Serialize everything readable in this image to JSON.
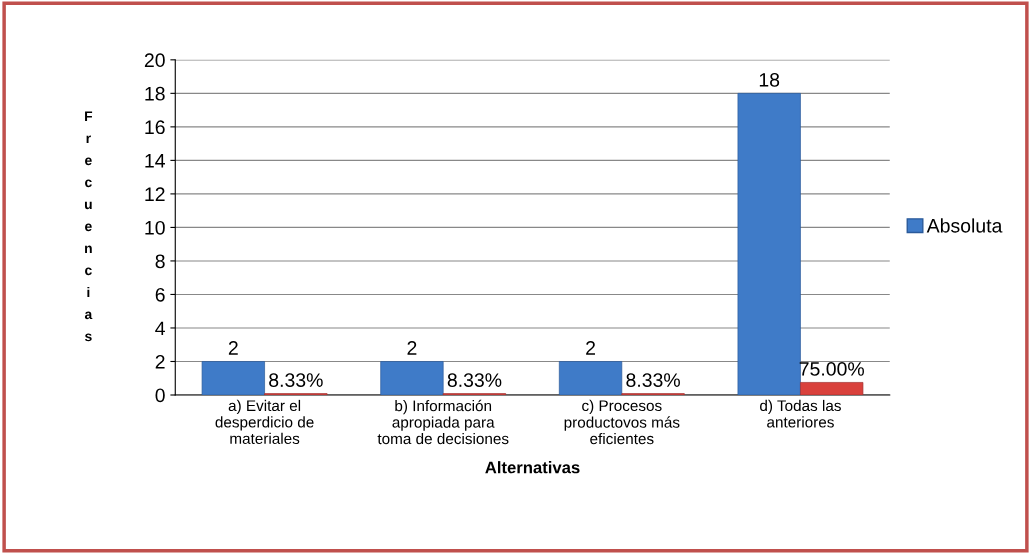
{
  "chart_data": {
    "type": "bar",
    "categories": [
      "a) Evitar el\ndesperdicio de\nmateriales",
      "b) Información\napropiada para\ntoma de decisiones",
      "c) Procesos\nproductovos más\neficientes",
      "d) Todas las\nanteriores"
    ],
    "series": [
      {
        "name": "Absoluta",
        "color": "#3f7bc8",
        "values": [
          2,
          2,
          2,
          18
        ],
        "value_labels": [
          "2",
          "2",
          "2",
          "18"
        ]
      },
      {
        "color": "#d9413c",
        "values": [
          0.0833,
          0.0833,
          0.0833,
          0.75
        ],
        "value_labels": [
          "8.33%",
          "8.33%",
          "8.33%",
          "75.00%"
        ]
      }
    ],
    "xlabel": "Alternativas",
    "ylabel": "Frecuencias",
    "ylim": [
      0,
      20
    ],
    "yticks": [
      0,
      2,
      4,
      6,
      8,
      10,
      12,
      14,
      16,
      18,
      20
    ],
    "grid": "y",
    "legend": "right"
  }
}
